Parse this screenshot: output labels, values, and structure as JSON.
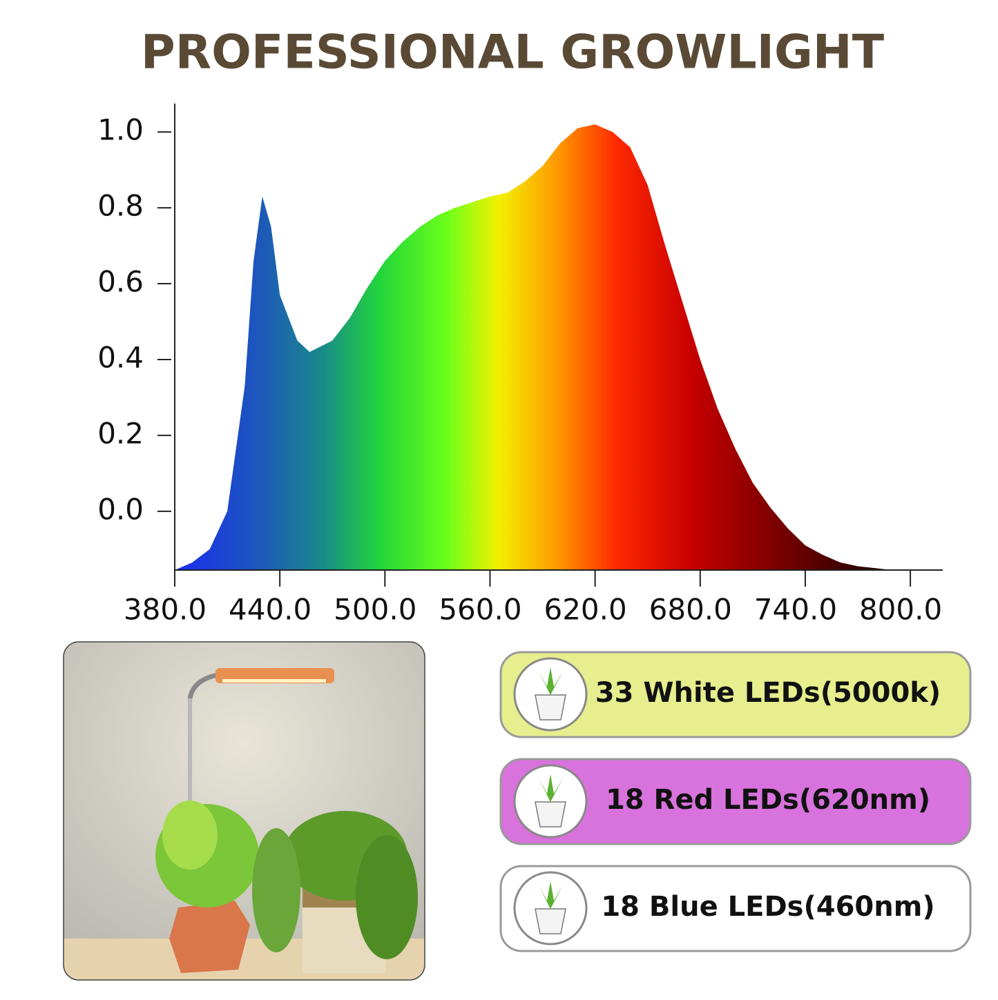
{
  "chart_data": {
    "type": "area",
    "title": "PROFESSIONAL GROWLIGHT",
    "x": [
      380,
      390,
      400,
      410,
      420,
      425,
      430,
      435,
      440,
      450,
      457,
      470,
      480,
      490,
      500,
      510,
      520,
      530,
      540,
      550,
      560,
      570,
      580,
      590,
      600,
      610,
      620,
      630,
      640,
      650,
      660,
      670,
      680,
      690,
      700,
      710,
      720,
      730,
      740,
      750,
      760,
      770,
      780,
      790
    ],
    "values": [
      -0.155,
      -0.135,
      -0.1,
      0.0,
      0.33,
      0.66,
      0.83,
      0.75,
      0.57,
      0.45,
      0.42,
      0.45,
      0.51,
      0.59,
      0.66,
      0.71,
      0.75,
      0.78,
      0.8,
      0.815,
      0.83,
      0.84,
      0.87,
      0.91,
      0.97,
      1.01,
      1.02,
      1.0,
      0.96,
      0.86,
      0.7,
      0.55,
      0.4,
      0.27,
      0.165,
      0.075,
      0.01,
      -0.045,
      -0.09,
      -0.115,
      -0.135,
      -0.145,
      -0.15,
      -0.155
    ],
    "xlim": [
      380,
      818.5
    ],
    "ylim": [
      -0.155,
      1.075
    ],
    "xticks": [
      {
        "value": 380,
        "label": "380.0"
      },
      {
        "value": 440,
        "label": "440.0"
      },
      {
        "value": 500,
        "label": "500.0"
      },
      {
        "value": 560,
        "label": "560.0"
      },
      {
        "value": 620,
        "label": "620.0"
      },
      {
        "value": 680,
        "label": "680.0"
      },
      {
        "value": 740,
        "label": "740.0"
      },
      {
        "value": 800,
        "label": "800.0"
      }
    ],
    "yticks": [
      {
        "value": 0,
        "label": "0.0"
      },
      0.2,
      0.4,
      0.6,
      0.8,
      {
        "value": 1,
        "label": "1.0"
      }
    ],
    "grid": false
  },
  "leds": [
    "33 White LEDs(5000k)",
    "18 Red LEDs(620nm)",
    "18 Blue LEDs(460nm)"
  ]
}
